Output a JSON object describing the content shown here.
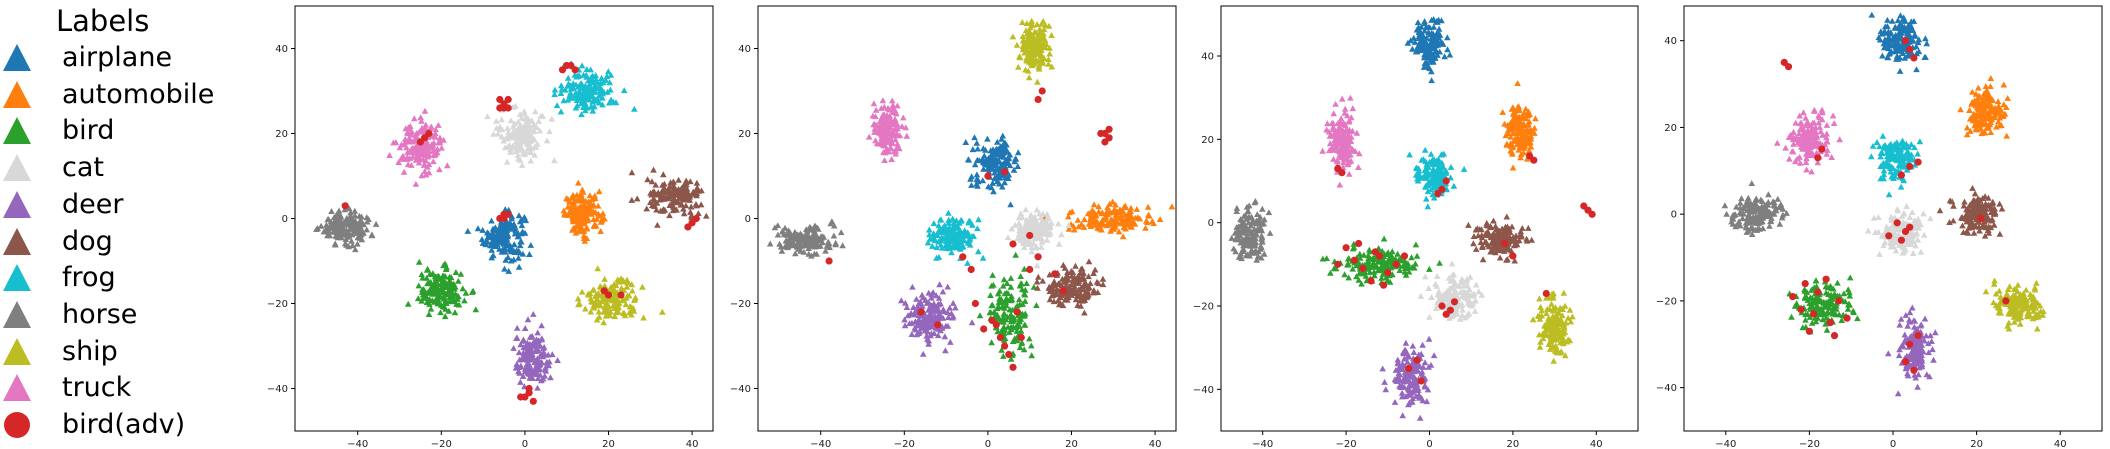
{
  "legend": {
    "title": "Labels",
    "items": [
      {
        "label": "airplane",
        "color": "#1f77b4",
        "marker": "triangle"
      },
      {
        "label": "automobile",
        "color": "#ff7f0e",
        "marker": "triangle"
      },
      {
        "label": "bird",
        "color": "#2ca02c",
        "marker": "triangle"
      },
      {
        "label": "cat",
        "color": "#d8d8d8",
        "marker": "triangle"
      },
      {
        "label": "deer",
        "color": "#9467bd",
        "marker": "triangle"
      },
      {
        "label": "dog",
        "color": "#8c564b",
        "marker": "triangle"
      },
      {
        "label": "frog",
        "color": "#17becf",
        "marker": "triangle"
      },
      {
        "label": "horse",
        "color": "#7f7f7f",
        "marker": "triangle"
      },
      {
        "label": "ship",
        "color": "#bcbd22",
        "marker": "triangle"
      },
      {
        "label": "truck",
        "color": "#e377c2",
        "marker": "triangle"
      },
      {
        "label": "bird(adv)",
        "color": "#d62728",
        "marker": "circle"
      }
    ]
  },
  "chart_data": [
    {
      "type": "scatter",
      "xlim": [
        -55,
        45
      ],
      "ylim": [
        -50,
        50
      ],
      "xticks": [
        -40,
        -20,
        0,
        20,
        40
      ],
      "yticks": [
        -40,
        -20,
        0,
        20,
        40
      ],
      "clusters": [
        {
          "label": "airplane",
          "center": [
            -5,
            -4
          ],
          "spread": [
            4.5,
            5
          ]
        },
        {
          "label": "automobile",
          "center": [
            14,
            1
          ],
          "spread": [
            4,
            4.5
          ]
        },
        {
          "label": "bird",
          "center": [
            -20,
            -17
          ],
          "spread": [
            5,
            4.5
          ]
        },
        {
          "label": "cat",
          "center": [
            -1,
            20
          ],
          "spread": [
            5,
            5.5
          ]
        },
        {
          "label": "deer",
          "center": [
            2,
            -33
          ],
          "spread": [
            4,
            6
          ]
        },
        {
          "label": "dog",
          "center": [
            36,
            5
          ],
          "spread": [
            6,
            4
          ]
        },
        {
          "label": "frog",
          "center": [
            15,
            30
          ],
          "spread": [
            6,
            4.5
          ]
        },
        {
          "label": "horse",
          "center": [
            -43,
            -2
          ],
          "spread": [
            5.5,
            3.5
          ]
        },
        {
          "label": "ship",
          "center": [
            21,
            -19
          ],
          "spread": [
            6,
            4
          ]
        },
        {
          "label": "truck",
          "center": [
            -25,
            17
          ],
          "spread": [
            5,
            5
          ]
        },
        {
          "label": "bird(adv)",
          "points": [
            [
              -5,
              27
            ],
            [
              -6,
              28
            ],
            [
              -4,
              26
            ],
            [
              -5,
              26
            ],
            [
              -6,
              26
            ],
            [
              -4,
              28
            ],
            [
              -5,
              1
            ],
            [
              -6,
              0
            ],
            [
              -4,
              1
            ],
            [
              -5,
              0
            ],
            [
              10,
              36
            ],
            [
              11,
              36
            ],
            [
              9,
              35
            ],
            [
              12,
              35
            ],
            [
              1,
              -41
            ],
            [
              0,
              -42
            ],
            [
              2,
              -43
            ],
            [
              1,
              -40
            ],
            [
              -1,
              -42
            ],
            [
              40,
              -1
            ],
            [
              39,
              -2
            ],
            [
              41,
              0
            ],
            [
              -24,
              19
            ],
            [
              -23,
              20
            ],
            [
              -25,
              18
            ],
            [
              19,
              -17
            ],
            [
              20,
              -18
            ],
            [
              23,
              -18
            ],
            [
              -43,
              3
            ]
          ]
        }
      ]
    },
    {
      "type": "scatter",
      "xlim": [
        -55,
        45
      ],
      "ylim": [
        -50,
        50
      ],
      "xticks": [
        -40,
        -20,
        0,
        20,
        40
      ],
      "yticks": [
        -40,
        -20,
        0,
        20,
        40
      ],
      "clusters": [
        {
          "label": "airplane",
          "center": [
            2,
            13
          ],
          "spread": [
            5,
            5
          ]
        },
        {
          "label": "automobile",
          "center": [
            29,
            0
          ],
          "spread": [
            9,
            3
          ]
        },
        {
          "label": "bird",
          "center": [
            5,
            -23
          ],
          "spread": [
            5,
            8
          ]
        },
        {
          "label": "cat",
          "center": [
            11,
            -3
          ],
          "spread": [
            4,
            4
          ]
        },
        {
          "label": "deer",
          "center": [
            -14,
            -23
          ],
          "spread": [
            5,
            5
          ]
        },
        {
          "label": "dog",
          "center": [
            20,
            -16
          ],
          "spread": [
            6,
            4
          ]
        },
        {
          "label": "frog",
          "center": [
            -8,
            -4
          ],
          "spread": [
            5,
            4
          ]
        },
        {
          "label": "horse",
          "center": [
            -44,
            -5
          ],
          "spread": [
            6,
            3
          ]
        },
        {
          "label": "ship",
          "center": [
            11,
            40
          ],
          "spread": [
            3.5,
            6
          ]
        },
        {
          "label": "truck",
          "center": [
            -24,
            21
          ],
          "spread": [
            3,
            6
          ]
        },
        {
          "label": "bird(adv)",
          "points": [
            [
              28,
              20
            ],
            [
              29,
              19
            ],
            [
              27,
              20
            ],
            [
              29,
              21
            ],
            [
              28,
              18
            ],
            [
              3,
              -28
            ],
            [
              5,
              -32
            ],
            [
              2,
              -25
            ],
            [
              7,
              -22
            ],
            [
              4,
              -30
            ],
            [
              6,
              -35
            ],
            [
              1,
              -24
            ],
            [
              -1,
              -26
            ],
            [
              8,
              -28
            ],
            [
              10,
              -12
            ],
            [
              12,
              -9
            ],
            [
              16,
              -13
            ],
            [
              18,
              -17
            ],
            [
              -6,
              -9
            ],
            [
              -4,
              -12
            ],
            [
              -16,
              -22
            ],
            [
              -12,
              -25
            ],
            [
              -3,
              -20
            ],
            [
              0,
              10
            ],
            [
              4,
              11
            ],
            [
              12,
              28
            ],
            [
              13,
              30
            ],
            [
              -38,
              -10
            ],
            [
              10,
              -4
            ],
            [
              6,
              -6
            ]
          ]
        }
      ]
    },
    {
      "type": "scatter",
      "xlim": [
        -50,
        50
      ],
      "ylim": [
        -50,
        52
      ],
      "xticks": [
        -40,
        -20,
        0,
        20,
        40
      ],
      "yticks": [
        -40,
        -20,
        0,
        20,
        40
      ],
      "clusters": [
        {
          "label": "airplane",
          "center": [
            0,
            43
          ],
          "spread": [
            3.5,
            5
          ]
        },
        {
          "label": "automobile",
          "center": [
            22,
            22
          ],
          "spread": [
            3,
            6
          ]
        },
        {
          "label": "bird",
          "center": [
            -12,
            -10
          ],
          "spread": [
            9,
            3.5
          ]
        },
        {
          "label": "cat",
          "center": [
            6,
            -18
          ],
          "spread": [
            5,
            4.5
          ]
        },
        {
          "label": "deer",
          "center": [
            -5,
            -37
          ],
          "spread": [
            4,
            6
          ]
        },
        {
          "label": "dog",
          "center": [
            17,
            -4
          ],
          "spread": [
            5,
            3.5
          ]
        },
        {
          "label": "frog",
          "center": [
            1,
            11
          ],
          "spread": [
            4,
            4.5
          ]
        },
        {
          "label": "horse",
          "center": [
            -43,
            -3
          ],
          "spread": [
            3.5,
            6
          ]
        },
        {
          "label": "ship",
          "center": [
            30,
            -25
          ],
          "spread": [
            3,
            6
          ]
        },
        {
          "label": "truck",
          "center": [
            -21,
            19
          ],
          "spread": [
            3,
            7
          ]
        },
        {
          "label": "bird(adv)",
          "points": [
            [
              -20,
              -6
            ],
            [
              -18,
              -9
            ],
            [
              -16,
              -11
            ],
            [
              -12,
              -8
            ],
            [
              -10,
              -12
            ],
            [
              -14,
              -14
            ],
            [
              -8,
              -10
            ],
            [
              -6,
              -8
            ],
            [
              -22,
              -10
            ],
            [
              -17,
              -5
            ],
            [
              -11,
              -15
            ],
            [
              -13,
              -7
            ],
            [
              3,
              -20
            ],
            [
              4,
              -22
            ],
            [
              5,
              -21
            ],
            [
              6,
              -19
            ],
            [
              2,
              7
            ],
            [
              3,
              8
            ],
            [
              4,
              10
            ],
            [
              -3,
              -33
            ],
            [
              -5,
              -35
            ],
            [
              -2,
              -38
            ],
            [
              38,
              3
            ],
            [
              37,
              4
            ],
            [
              39,
              2
            ],
            [
              -22,
              13
            ],
            [
              -21,
              12
            ],
            [
              18,
              -5
            ],
            [
              20,
              -8
            ],
            [
              28,
              -17
            ],
            [
              24,
              16
            ],
            [
              25,
              15
            ]
          ]
        }
      ]
    },
    {
      "type": "scatter",
      "xlim": [
        -50,
        50
      ],
      "ylim": [
        -50,
        48
      ],
      "xticks": [
        -40,
        -20,
        0,
        20,
        40
      ],
      "yticks": [
        -40,
        -20,
        0,
        20,
        40
      ],
      "clusters": [
        {
          "label": "airplane",
          "center": [
            2,
            40
          ],
          "spread": [
            4.5,
            5
          ]
        },
        {
          "label": "automobile",
          "center": [
            22,
            24
          ],
          "spread": [
            4.5,
            5
          ]
        },
        {
          "label": "bird",
          "center": [
            -17,
            -21
          ],
          "spread": [
            6,
            5
          ]
        },
        {
          "label": "cat",
          "center": [
            2,
            -4
          ],
          "spread": [
            5,
            4
          ]
        },
        {
          "label": "deer",
          "center": [
            5,
            -31
          ],
          "spread": [
            3.5,
            6
          ]
        },
        {
          "label": "dog",
          "center": [
            20,
            0
          ],
          "spread": [
            5,
            4
          ]
        },
        {
          "label": "frog",
          "center": [
            1,
            13
          ],
          "spread": [
            4,
            5
          ]
        },
        {
          "label": "horse",
          "center": [
            -33,
            0
          ],
          "spread": [
            6,
            3.5
          ]
        },
        {
          "label": "ship",
          "center": [
            30,
            -21
          ],
          "spread": [
            5,
            4
          ]
        },
        {
          "label": "truck",
          "center": [
            -20,
            17
          ],
          "spread": [
            4.5,
            6
          ]
        },
        {
          "label": "bird(adv)",
          "points": [
            [
              -22,
              -22
            ],
            [
              -18,
              -18
            ],
            [
              -15,
              -25
            ],
            [
              -20,
              -27
            ],
            [
              -13,
              -20
            ],
            [
              -24,
              -19
            ],
            [
              -16,
              -15
            ],
            [
              -19,
              -23
            ],
            [
              -11,
              -24
            ],
            [
              -21,
              -16
            ],
            [
              -14,
              -28
            ],
            [
              1,
              -2
            ],
            [
              3,
              -4
            ],
            [
              -1,
              -5
            ],
            [
              2,
              -6
            ],
            [
              4,
              -3
            ],
            [
              4,
              11
            ],
            [
              2,
              9
            ],
            [
              6,
              12
            ],
            [
              4,
              -30
            ],
            [
              3,
              -34
            ],
            [
              6,
              -28
            ],
            [
              5,
              -36
            ],
            [
              4,
              38
            ],
            [
              5,
              36
            ],
            [
              3,
              40
            ],
            [
              -18,
              13
            ],
            [
              -17,
              15
            ],
            [
              27,
              -20
            ],
            [
              -26,
              35
            ],
            [
              -25,
              34
            ],
            [
              21,
              -1
            ]
          ]
        }
      ]
    }
  ]
}
